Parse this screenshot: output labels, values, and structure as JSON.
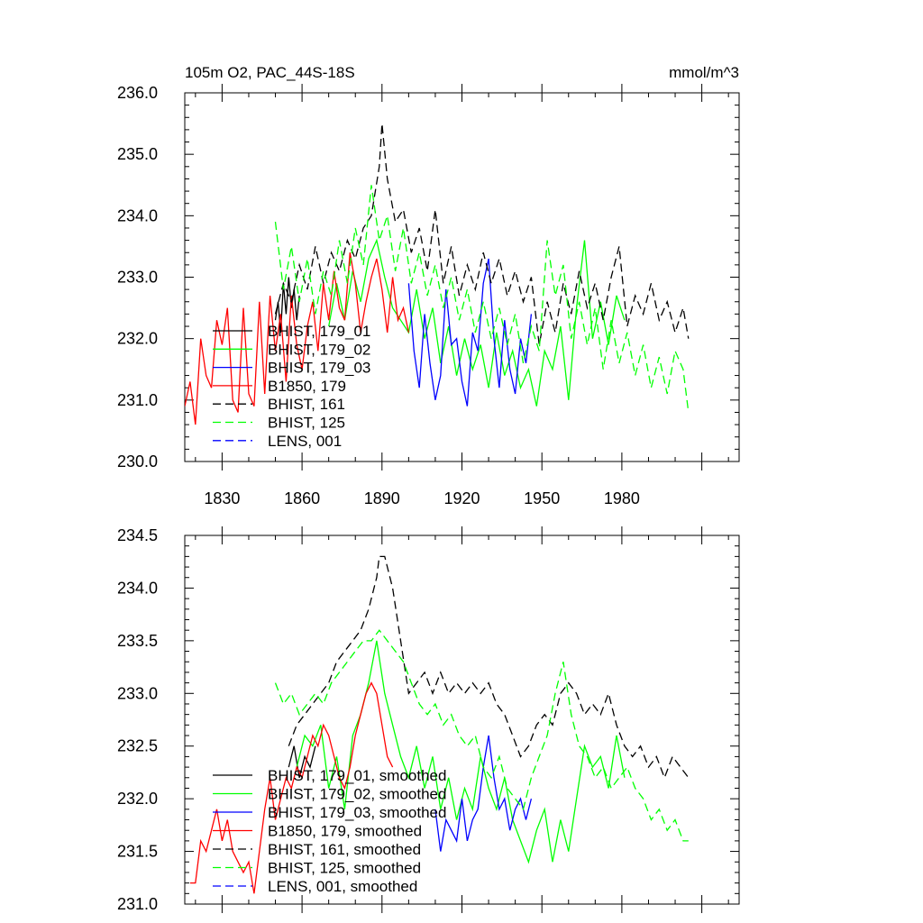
{
  "chart_data": [
    {
      "type": "line",
      "title": "105m O2, PAC_44S-18S",
      "units": "mmol/m^3",
      "xlabel": "",
      "ylabel": "",
      "xlim": [
        1816,
        2024
      ],
      "ylim": [
        230.0,
        236.0
      ],
      "x_ticks": [
        1830,
        1860,
        1890,
        1920,
        1950,
        1980
      ],
      "y_ticks": [
        "230.0",
        "231.0",
        "232.0",
        "233.0",
        "234.0",
        "235.0",
        "236.0"
      ],
      "legend_position": "bottom-left",
      "series": [
        {
          "name": "BHIST, 179_01",
          "color": "#000000",
          "dash": "solid",
          "x": [
            1850,
            1851,
            1852,
            1853,
            1854,
            1855,
            1856,
            1857,
            1858,
            1859
          ],
          "y": [
            232.3,
            232.6,
            232.1,
            232.9,
            232.4,
            233.0,
            232.5,
            232.8,
            232.3,
            232.7
          ]
        },
        {
          "name": "BHIST, 179_02",
          "color": "#00ff00",
          "dash": "solid",
          "x": [
            1870,
            1873,
            1876,
            1879,
            1882,
            1885,
            1888,
            1891,
            1894,
            1897,
            1900,
            1903,
            1906,
            1909,
            1912,
            1915,
            1918,
            1921,
            1924,
            1927,
            1930,
            1933,
            1936,
            1939,
            1942,
            1945,
            1948,
            1951,
            1954,
            1957,
            1960,
            1963,
            1966,
            1969,
            1972,
            1975,
            1978,
            1981
          ],
          "y": [
            232.2,
            232.9,
            232.3,
            233.1,
            232.6,
            233.3,
            233.6,
            233.0,
            232.5,
            232.3,
            232.1,
            232.8,
            232.0,
            232.5,
            231.6,
            232.2,
            231.4,
            232.0,
            231.5,
            231.9,
            231.2,
            232.1,
            231.4,
            231.8,
            231.2,
            231.5,
            230.9,
            231.8,
            231.5,
            232.2,
            231.0,
            232.5,
            233.6,
            232.0,
            232.6,
            231.9,
            232.7,
            232.3
          ]
        },
        {
          "name": "BHIST, 179_03",
          "color": "#0000ff",
          "dash": "solid",
          "x": [
            1900,
            1902,
            1904,
            1906,
            1908,
            1910,
            1912,
            1914,
            1916,
            1918,
            1920,
            1922,
            1924,
            1926,
            1928,
            1930,
            1932,
            1934,
            1936,
            1938,
            1940,
            1942,
            1944,
            1946
          ],
          "y": [
            232.9,
            231.8,
            231.2,
            232.4,
            231.6,
            231.0,
            231.4,
            232.8,
            231.9,
            232.0,
            231.3,
            230.9,
            232.1,
            231.8,
            232.9,
            233.3,
            232.0,
            231.2,
            232.3,
            231.5,
            231.1,
            232.0,
            231.6,
            232.4
          ]
        },
        {
          "name": "B1850, 179",
          "color": "#ff0000",
          "dash": "solid",
          "x": [
            1816,
            1818,
            1820,
            1822,
            1824,
            1826,
            1828,
            1830,
            1832,
            1834,
            1836,
            1838,
            1840,
            1842,
            1844,
            1846,
            1848,
            1850,
            1852,
            1854,
            1856,
            1858,
            1860,
            1862,
            1864,
            1866,
            1868,
            1870,
            1872,
            1874,
            1876,
            1878,
            1880,
            1882,
            1884,
            1886,
            1888,
            1890,
            1892,
            1894,
            1896,
            1898,
            1900
          ],
          "y": [
            230.9,
            231.3,
            230.6,
            232.0,
            231.4,
            231.2,
            232.3,
            231.9,
            232.5,
            231.0,
            230.8,
            232.5,
            231.1,
            230.9,
            232.6,
            231.1,
            232.7,
            231.8,
            232.4,
            231.3,
            232.7,
            231.9,
            231.5,
            232.2,
            232.6,
            231.8,
            232.9,
            232.3,
            233.1,
            232.5,
            232.3,
            233.4,
            232.9,
            232.1,
            232.6,
            233.0,
            233.3,
            232.8,
            232.1,
            233.0,
            232.3,
            232.5,
            232.1
          ]
        },
        {
          "name": "BHIST, 161",
          "color": "#000000",
          "dash": "dashed",
          "x": [
            1850,
            1853,
            1856,
            1859,
            1862,
            1865,
            1868,
            1871,
            1874,
            1877,
            1880,
            1883,
            1886,
            1889,
            1890,
            1892,
            1895,
            1898,
            1901,
            1904,
            1907,
            1910,
            1913,
            1916,
            1919,
            1922,
            1925,
            1928,
            1931,
            1934,
            1937,
            1940,
            1943,
            1946,
            1949,
            1952,
            1955,
            1958,
            1961,
            1964,
            1967,
            1970,
            1973,
            1976,
            1979,
            1982,
            1985,
            1988,
            1991,
            1994,
            1997,
            2000,
            2003,
            2005
          ],
          "y": [
            232.4,
            232.9,
            232.6,
            233.2,
            232.8,
            233.5,
            232.9,
            233.4,
            233.1,
            233.6,
            233.3,
            233.8,
            234.0,
            234.8,
            235.5,
            234.6,
            233.9,
            234.1,
            233.4,
            233.8,
            233.1,
            234.1,
            232.9,
            233.5,
            232.7,
            233.2,
            232.8,
            233.4,
            232.9,
            233.3,
            232.7,
            233.1,
            232.6,
            233.0,
            231.9,
            232.6,
            232.1,
            232.9,
            232.4,
            233.1,
            232.5,
            232.9,
            232.3,
            233.0,
            233.5,
            232.2,
            232.7,
            232.4,
            232.9,
            232.3,
            232.6,
            232.1,
            232.5,
            232.0
          ]
        },
        {
          "name": "BHIST, 125",
          "color": "#00ff00",
          "dash": "dashed",
          "x": [
            1850,
            1853,
            1856,
            1859,
            1862,
            1865,
            1868,
            1871,
            1874,
            1877,
            1880,
            1883,
            1886,
            1889,
            1892,
            1895,
            1898,
            1901,
            1904,
            1907,
            1910,
            1913,
            1916,
            1919,
            1922,
            1925,
            1928,
            1931,
            1934,
            1937,
            1940,
            1943,
            1946,
            1949,
            1952,
            1955,
            1958,
            1961,
            1964,
            1967,
            1970,
            1973,
            1976,
            1979,
            1982,
            1985,
            1988,
            1991,
            1994,
            1997,
            2000,
            2003,
            2005
          ],
          "y": [
            233.9,
            232.8,
            233.5,
            232.6,
            233.3,
            232.4,
            233.1,
            232.7,
            233.6,
            232.9,
            233.8,
            233.2,
            234.5,
            233.6,
            234.0,
            233.1,
            233.8,
            232.9,
            233.4,
            232.7,
            233.2,
            232.5,
            233.0,
            232.3,
            232.8,
            232.1,
            232.6,
            232.0,
            232.5,
            231.9,
            232.4,
            231.6,
            232.2,
            231.8,
            233.6,
            232.7,
            233.2,
            232.0,
            232.6,
            231.9,
            232.5,
            231.5,
            232.3,
            231.6,
            232.1,
            231.4,
            231.9,
            231.2,
            231.7,
            231.1,
            231.8,
            231.5,
            230.8
          ]
        },
        {
          "name": "LENS, 001",
          "color": "#0000ff",
          "dash": "dashed",
          "x": [],
          "y": []
        }
      ]
    },
    {
      "type": "line",
      "title": "",
      "xlabel": "",
      "ylabel": "",
      "xlim": [
        1816,
        2024
      ],
      "ylim": [
        231.0,
        234.5
      ],
      "x_ticks": [],
      "y_ticks": [
        "231.0",
        "231.5",
        "232.0",
        "232.5",
        "233.0",
        "233.5",
        "234.0",
        "234.5"
      ],
      "legend_position": "bottom-left",
      "series": [
        {
          "name": "BHIST, 179_01, smoothed",
          "color": "#000000",
          "dash": "solid",
          "x": [
            1855,
            1857,
            1859,
            1861,
            1863,
            1865
          ],
          "y": [
            232.3,
            232.5,
            232.2,
            232.4,
            232.3,
            232.5
          ]
        },
        {
          "name": "BHIST, 179_02, smoothed",
          "color": "#00ff00",
          "dash": "solid",
          "x": [
            1858,
            1861,
            1864,
            1867,
            1870,
            1873,
            1876,
            1879,
            1882,
            1885,
            1888,
            1891,
            1894,
            1897,
            1900,
            1903,
            1906,
            1909,
            1912,
            1915,
            1918,
            1921,
            1924,
            1927,
            1930,
            1933,
            1936,
            1939,
            1942,
            1945,
            1948,
            1951,
            1954,
            1957,
            1960,
            1963,
            1966,
            1969,
            1972,
            1975,
            1978,
            1981
          ],
          "y": [
            232.3,
            232.6,
            232.5,
            232.7,
            232.1,
            232.4,
            231.9,
            232.6,
            232.8,
            233.1,
            233.5,
            233.0,
            232.7,
            232.4,
            232.2,
            232.5,
            232.1,
            232.4,
            231.9,
            232.2,
            231.8,
            232.1,
            231.9,
            232.4,
            232.1,
            231.9,
            232.2,
            231.8,
            231.6,
            231.4,
            231.7,
            231.9,
            231.4,
            231.8,
            231.5,
            232.0,
            232.5,
            232.3,
            232.4,
            232.1,
            232.6,
            232.2
          ]
        },
        {
          "name": "BHIST, 179_03, smoothed",
          "color": "#0000ff",
          "dash": "solid",
          "x": [
            1910,
            1912,
            1914,
            1916,
            1918,
            1920,
            1922,
            1924,
            1926,
            1928,
            1930,
            1932,
            1934,
            1936,
            1938,
            1940,
            1942,
            1944,
            1946
          ],
          "y": [
            231.9,
            231.5,
            231.8,
            231.7,
            231.6,
            232.0,
            231.6,
            231.8,
            231.9,
            232.3,
            232.6,
            232.2,
            231.9,
            232.0,
            231.7,
            231.9,
            232.0,
            231.8,
            232.0
          ]
        },
        {
          "name": "B1850, 179, smoothed",
          "color": "#ff0000",
          "dash": "solid",
          "x": [
            1818,
            1820,
            1822,
            1824,
            1826,
            1828,
            1830,
            1832,
            1834,
            1836,
            1838,
            1840,
            1842,
            1844,
            1846,
            1848,
            1850,
            1852,
            1854,
            1856,
            1858,
            1860,
            1862,
            1864,
            1866,
            1868,
            1870,
            1872,
            1874,
            1876,
            1878,
            1880,
            1882,
            1884,
            1886,
            1888,
            1890,
            1892,
            1894
          ],
          "y": [
            231.2,
            231.2,
            231.6,
            231.5,
            231.7,
            231.9,
            231.6,
            231.8,
            231.5,
            231.4,
            231.3,
            231.4,
            231.1,
            231.5,
            231.9,
            232.2,
            231.8,
            232.0,
            232.2,
            232.1,
            232.3,
            232.2,
            232.4,
            232.6,
            232.5,
            232.7,
            232.6,
            232.4,
            232.2,
            232.1,
            232.3,
            232.6,
            232.8,
            233.0,
            233.1,
            233.0,
            232.7,
            232.4,
            232.3
          ]
        },
        {
          "name": "BHIST, 161, smoothed",
          "color": "#000000",
          "dash": "dashed",
          "x": [
            1855,
            1858,
            1861,
            1864,
            1867,
            1870,
            1873,
            1876,
            1879,
            1882,
            1885,
            1888,
            1889,
            1891,
            1894,
            1897,
            1900,
            1903,
            1906,
            1909,
            1912,
            1915,
            1918,
            1921,
            1924,
            1927,
            1930,
            1933,
            1936,
            1939,
            1942,
            1945,
            1948,
            1951,
            1954,
            1957,
            1960,
            1963,
            1966,
            1969,
            1972,
            1975,
            1978,
            1981,
            1984,
            1987,
            1990,
            1993,
            1996,
            1999,
            2002,
            2005
          ],
          "y": [
            232.5,
            232.7,
            232.8,
            232.9,
            233.0,
            233.1,
            233.3,
            233.4,
            233.5,
            233.6,
            233.8,
            234.1,
            234.3,
            234.3,
            234.0,
            233.5,
            233.0,
            233.1,
            233.2,
            233.0,
            233.2,
            233.0,
            233.1,
            233.0,
            233.1,
            233.0,
            233.1,
            232.9,
            232.8,
            232.6,
            232.4,
            232.5,
            232.7,
            232.8,
            232.7,
            233.0,
            233.1,
            233.0,
            232.8,
            232.9,
            232.8,
            233.0,
            232.7,
            232.5,
            232.4,
            232.5,
            232.3,
            232.4,
            232.2,
            232.4,
            232.3,
            232.2
          ]
        },
        {
          "name": "BHIST, 125, smoothed",
          "color": "#00ff00",
          "dash": "dashed",
          "x": [
            1850,
            1853,
            1856,
            1859,
            1862,
            1865,
            1868,
            1871,
            1874,
            1877,
            1880,
            1883,
            1886,
            1889,
            1892,
            1895,
            1898,
            1901,
            1904,
            1907,
            1910,
            1913,
            1916,
            1919,
            1922,
            1925,
            1928,
            1931,
            1934,
            1937,
            1940,
            1943,
            1946,
            1949,
            1952,
            1955,
            1958,
            1961,
            1964,
            1967,
            1970,
            1973,
            1976,
            1979,
            1982,
            1985,
            1988,
            1991,
            1994,
            1997,
            2000,
            2003,
            2005
          ],
          "y": [
            233.1,
            232.9,
            233.0,
            232.8,
            232.9,
            233.0,
            232.9,
            233.1,
            233.2,
            233.3,
            233.4,
            233.5,
            233.5,
            233.6,
            233.5,
            233.4,
            233.3,
            233.1,
            232.9,
            232.8,
            232.9,
            232.7,
            232.8,
            232.6,
            232.5,
            232.6,
            232.3,
            232.2,
            232.4,
            232.1,
            232.0,
            231.9,
            232.2,
            232.4,
            232.6,
            233.0,
            233.3,
            232.8,
            232.5,
            232.4,
            232.2,
            232.3,
            232.1,
            232.2,
            232.3,
            232.1,
            232.0,
            231.8,
            231.9,
            231.7,
            231.8,
            231.6,
            231.6
          ]
        },
        {
          "name": "LENS, 001, smoothed",
          "color": "#0000ff",
          "dash": "dashed",
          "x": [],
          "y": []
        }
      ]
    }
  ]
}
